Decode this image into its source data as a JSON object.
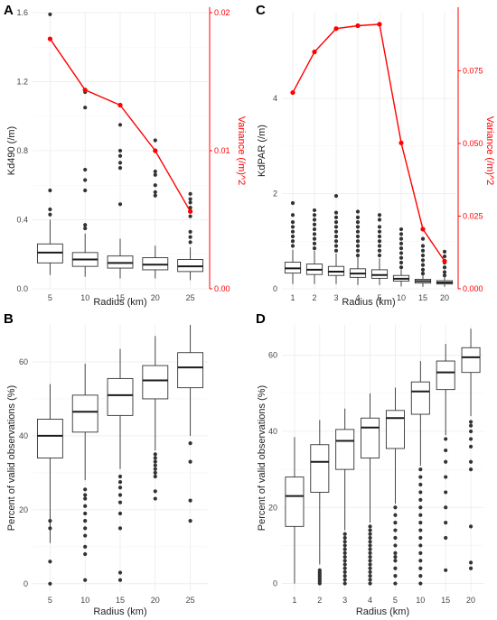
{
  "colors": {
    "variance": "#ff0000",
    "box_line": "#333333",
    "point": "#333333",
    "grid_major": "#ebebeb",
    "grid_minor": "#f5f5f5"
  },
  "chart_data": [
    {
      "panel": "A",
      "type": "box+line",
      "categories": [
        "5",
        "10",
        "15",
        "20",
        "25"
      ],
      "xlabel": "Radius (km)",
      "ylabel": "Kd490 (/m)",
      "ylim": [
        0,
        1.6
      ],
      "yticks": [
        0.0,
        0.4,
        0.8,
        1.2,
        1.6
      ],
      "y2label": "Variance (/m)^2",
      "y2lim": [
        0,
        0.02
      ],
      "y2ticks": [
        0.0,
        0.01,
        0.02
      ],
      "grid": true,
      "boxes": [
        {
          "whislo": 0.08,
          "q1": 0.15,
          "med": 0.21,
          "q3": 0.26,
          "whishi": 0.4,
          "fliers": [
            0.43,
            0.46,
            0.57,
            1.59
          ]
        },
        {
          "whislo": 0.07,
          "q1": 0.13,
          "med": 0.17,
          "q3": 0.21,
          "whishi": 0.32,
          "fliers": [
            0.35,
            0.37,
            0.57,
            0.63,
            0.69,
            1.05,
            1.14
          ]
        },
        {
          "whislo": 0.06,
          "q1": 0.12,
          "med": 0.15,
          "q3": 0.19,
          "whishi": 0.29,
          "fliers": [
            0.49,
            0.7,
            0.73,
            0.77,
            0.8,
            0.95
          ]
        },
        {
          "whislo": 0.06,
          "q1": 0.11,
          "med": 0.14,
          "q3": 0.18,
          "whishi": 0.25,
          "fliers": [
            0.54,
            0.56,
            0.6,
            0.66,
            0.68,
            0.86
          ]
        },
        {
          "whislo": 0.05,
          "q1": 0.1,
          "med": 0.13,
          "q3": 0.17,
          "whishi": 0.24,
          "fliers": [
            0.27,
            0.3,
            0.33,
            0.42,
            0.47,
            0.5,
            0.52,
            0.55
          ]
        }
      ],
      "variance": [
        0.0181,
        0.0144,
        0.0133,
        0.01,
        0.0056
      ]
    },
    {
      "panel": "C",
      "type": "box+line",
      "categories": [
        "1",
        "2",
        "3",
        "4",
        "5",
        "10",
        "15",
        "20"
      ],
      "xlabel": "Radius (km)",
      "ylabel": "KdPAR (/m)",
      "ylim": [
        0,
        5.8
      ],
      "yticks": [
        0,
        2,
        4
      ],
      "y2label": "Variance (/m)^2",
      "y2lim": [
        0,
        0.095
      ],
      "y2ticks": [
        0.0,
        0.025,
        0.05,
        0.075
      ],
      "grid": true,
      "boxes": [
        {
          "whislo": 0.1,
          "q1": 0.33,
          "med": 0.43,
          "q3": 0.56,
          "whishi": 0.82,
          "fliers": [
            0.9,
            1.0,
            1.1,
            1.2,
            1.3,
            1.4,
            1.55,
            1.8
          ]
        },
        {
          "whislo": 0.1,
          "q1": 0.3,
          "med": 0.4,
          "q3": 0.52,
          "whishi": 0.8,
          "fliers": [
            0.85,
            0.95,
            1.05,
            1.15,
            1.25,
            1.35,
            1.45,
            1.55,
            1.65
          ]
        },
        {
          "whislo": 0.1,
          "q1": 0.28,
          "med": 0.36,
          "q3": 0.47,
          "whishi": 0.74,
          "fliers": [
            0.8,
            0.9,
            1.0,
            1.1,
            1.2,
            1.3,
            1.4,
            1.5,
            1.6,
            1.95
          ]
        },
        {
          "whislo": 0.08,
          "q1": 0.24,
          "med": 0.32,
          "q3": 0.42,
          "whishi": 0.66,
          "fliers": [
            0.7,
            0.8,
            0.9,
            1.0,
            1.1,
            1.2,
            1.3,
            1.4,
            1.5,
            1.62
          ]
        },
        {
          "whislo": 0.08,
          "q1": 0.22,
          "med": 0.29,
          "q3": 0.4,
          "whishi": 0.64,
          "fliers": [
            0.7,
            0.8,
            0.9,
            1.0,
            1.1,
            1.2,
            1.3,
            1.45,
            1.55
          ]
        },
        {
          "whislo": 0.05,
          "q1": 0.16,
          "med": 0.21,
          "q3": 0.28,
          "whishi": 0.4,
          "fliers": [
            0.45,
            0.55,
            0.65,
            0.75,
            0.85,
            0.95,
            1.05,
            1.15,
            1.25
          ]
        },
        {
          "whislo": 0.04,
          "q1": 0.12,
          "med": 0.16,
          "q3": 0.2,
          "whishi": 0.28,
          "fliers": [
            0.32,
            0.4,
            0.5,
            0.6,
            0.7,
            0.8,
            0.9,
            1.05
          ]
        },
        {
          "whislo": 0.04,
          "q1": 0.1,
          "med": 0.13,
          "q3": 0.17,
          "whishi": 0.24,
          "fliers": [
            0.28,
            0.35,
            0.45,
            0.55,
            0.68,
            0.78
          ]
        }
      ],
      "variance": [
        0.0675,
        0.0815,
        0.0895,
        0.0905,
        0.091,
        0.0502,
        0.0205,
        0.0095
      ]
    },
    {
      "panel": "B",
      "type": "box",
      "categories": [
        "5",
        "10",
        "15",
        "20",
        "25"
      ],
      "xlabel": "Radius (km)",
      "ylabel": "Percent of valid observations (%)",
      "ylim": [
        -2,
        70
      ],
      "yticks": [
        0,
        20,
        40,
        60
      ],
      "grid": true,
      "boxes": [
        {
          "whislo": 11,
          "q1": 34,
          "med": 40,
          "q3": 44.5,
          "whishi": 54,
          "fliers": [
            0,
            6,
            15,
            17
          ]
        },
        {
          "whislo": 28,
          "q1": 41,
          "med": 46.5,
          "q3": 51,
          "whishi": 59.5,
          "fliers": [
            1,
            8,
            10,
            13,
            15,
            17,
            19,
            21,
            23,
            24,
            25.5
          ]
        },
        {
          "whislo": 31,
          "q1": 45.5,
          "med": 51,
          "q3": 55.5,
          "whishi": 63.5,
          "fliers": [
            1,
            3,
            15,
            19,
            22,
            24,
            26,
            27.5,
            29
          ]
        },
        {
          "whislo": 36,
          "q1": 50,
          "med": 55,
          "q3": 59,
          "whishi": 67,
          "fliers": [
            23,
            25,
            29,
            30,
            31,
            32,
            33,
            34,
            35
          ]
        },
        {
          "whislo": 40,
          "q1": 53,
          "med": 58.5,
          "q3": 62.5,
          "whishi": 70,
          "fliers": [
            17,
            22.5,
            33,
            38
          ]
        }
      ]
    },
    {
      "panel": "D",
      "type": "box",
      "categories": [
        "1",
        "2",
        "3",
        "4",
        "5",
        "10",
        "15",
        "20"
      ],
      "xlabel": "Radius (km)",
      "ylabel": "Percent of valid observations (%)",
      "ylim": [
        -2,
        68
      ],
      "yticks": [
        0,
        20,
        40,
        60
      ],
      "grid": true,
      "boxes": [
        {
          "whislo": 0,
          "q1": 15,
          "med": 23,
          "q3": 28,
          "whishi": 38.5,
          "fliers": []
        },
        {
          "whislo": 5,
          "q1": 24,
          "med": 32,
          "q3": 36.5,
          "whishi": 43,
          "fliers": [
            0,
            0.5,
            1,
            1.5,
            2,
            2.5,
            3,
            3.5
          ]
        },
        {
          "whislo": 14,
          "q1": 30,
          "med": 37.5,
          "q3": 40.5,
          "whishi": 46,
          "fliers": [
            0,
            1,
            2,
            3,
            4,
            5,
            6,
            7,
            8,
            9,
            10,
            11,
            12,
            13
          ]
        },
        {
          "whislo": 16,
          "q1": 33,
          "med": 41,
          "q3": 43.5,
          "whishi": 50,
          "fliers": [
            0,
            1,
            2,
            3,
            4,
            5,
            6,
            7,
            8,
            9,
            10,
            11,
            12,
            13,
            14,
            15
          ]
        },
        {
          "whislo": 21,
          "q1": 35.5,
          "med": 43.5,
          "q3": 45.5,
          "whishi": 51.5,
          "fliers": [
            0,
            2,
            4,
            6,
            7,
            8,
            10,
            12,
            14,
            16,
            18,
            20
          ]
        },
        {
          "whislo": 31,
          "q1": 44.5,
          "med": 50.5,
          "q3": 53,
          "whishi": 58.5,
          "fliers": [
            0,
            2,
            4,
            6,
            8,
            10,
            12,
            14,
            16,
            18,
            20,
            22,
            24,
            26,
            28,
            30
          ]
        },
        {
          "whislo": 39,
          "q1": 51,
          "med": 55.5,
          "q3": 58.5,
          "whishi": 63,
          "fliers": [
            3.5,
            12,
            16,
            20,
            24,
            28,
            32,
            35,
            38
          ]
        },
        {
          "whislo": 44,
          "q1": 55.5,
          "med": 59.5,
          "q3": 62,
          "whishi": 67,
          "fliers": [
            4,
            5.5,
            15,
            30,
            32,
            36,
            38,
            40,
            41.5,
            42.5
          ]
        }
      ]
    }
  ]
}
